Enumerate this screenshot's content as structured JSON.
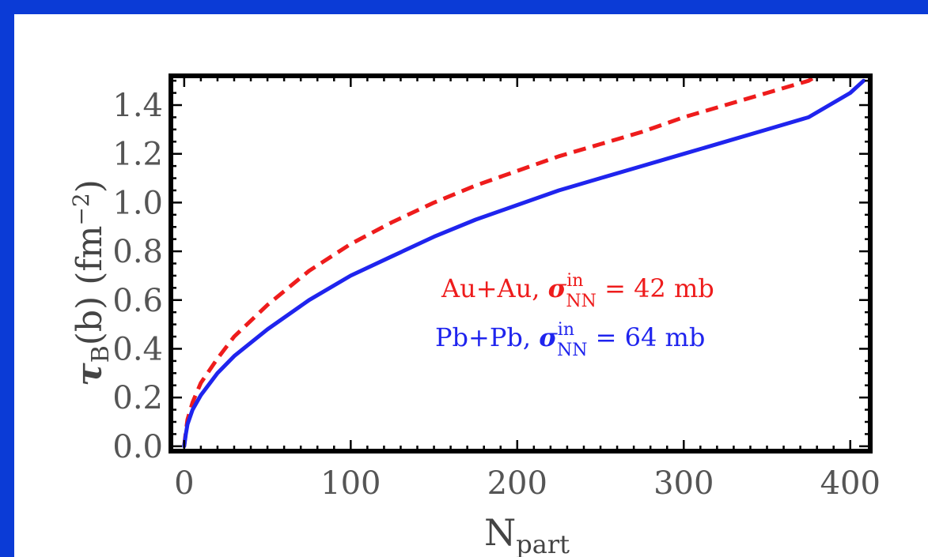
{
  "chart_data": {
    "type": "line",
    "xlabel": "N",
    "xlabel_sub": "part",
    "ylabel": "τ",
    "ylabel_sub": "B",
    "ylabel_rest": "(b) (fm",
    "ylabel_sup": "−2",
    "ylabel_end": ")",
    "xlim": [
      -8,
      412
    ],
    "ylim": [
      -0.02,
      1.52
    ],
    "xticks": [
      0,
      100,
      200,
      300,
      400
    ],
    "xtick_labels": [
      "0",
      "100",
      "200",
      "300",
      "400"
    ],
    "yticks": [
      0.0,
      0.2,
      0.4,
      0.6,
      0.8,
      1.0,
      1.2,
      1.4
    ],
    "ytick_labels": [
      "0.0",
      "0.2",
      "0.4",
      "0.6",
      "0.8",
      "1.0",
      "1.2",
      "1.4"
    ],
    "grid": false,
    "legend_position": "center-right",
    "series": [
      {
        "name_prefix": "Au+Au, ",
        "sigma": "σ",
        "sigma_sup": "in",
        "sigma_sub": "NN",
        "name_suffix": " = 42 mb",
        "color": "#ee1c1c",
        "dash": "dashed",
        "x": [
          0,
          1,
          2,
          5,
          10,
          20,
          30,
          50,
          75,
          100,
          125,
          150,
          175,
          200,
          225,
          250,
          275,
          300,
          325,
          350,
          375,
          380
        ],
        "y": [
          0.0,
          0.06,
          0.11,
          0.18,
          0.26,
          0.36,
          0.45,
          0.58,
          0.72,
          0.83,
          0.92,
          1.0,
          1.07,
          1.13,
          1.19,
          1.24,
          1.29,
          1.35,
          1.4,
          1.45,
          1.5,
          1.52
        ]
      },
      {
        "name_prefix": "Pb+Pb, ",
        "sigma": "σ",
        "sigma_sup": "in",
        "sigma_sub": "NN",
        "name_suffix": " = 64 mb",
        "color": "#1f24ee",
        "dash": "solid",
        "x": [
          0,
          1,
          2,
          5,
          10,
          20,
          30,
          50,
          75,
          100,
          125,
          150,
          175,
          200,
          225,
          250,
          275,
          300,
          325,
          350,
          375,
          400,
          408
        ],
        "y": [
          0.0,
          0.05,
          0.09,
          0.15,
          0.21,
          0.3,
          0.37,
          0.48,
          0.6,
          0.7,
          0.78,
          0.86,
          0.93,
          0.99,
          1.05,
          1.1,
          1.15,
          1.2,
          1.25,
          1.3,
          1.35,
          1.45,
          1.5
        ]
      }
    ]
  }
}
